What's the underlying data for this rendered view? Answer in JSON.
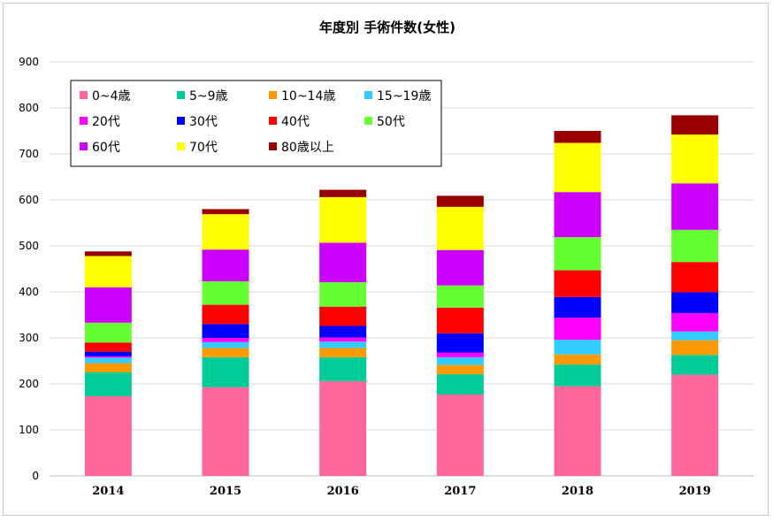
{
  "chart_data": {
    "type": "bar",
    "stacked": true,
    "title": "年度別 手術件数(女性)",
    "categories": [
      "2014",
      "2015",
      "2016",
      "2017",
      "2018",
      "2019"
    ],
    "ylim": [
      0,
      900
    ],
    "yticks": [
      0,
      100,
      200,
      300,
      400,
      500,
      600,
      700,
      800,
      900
    ],
    "grid": true,
    "legend_position": "top-left",
    "series": [
      {
        "name": "0~4歳",
        "color": "#FF6699",
        "values": [
          173,
          193,
          206,
          177,
          195,
          220
        ]
      },
      {
        "name": "5~9歳",
        "color": "#00CC99",
        "values": [
          52,
          65,
          52,
          44,
          47,
          43
        ]
      },
      {
        "name": "10~14歳",
        "color": "#FF9900",
        "values": [
          20,
          20,
          20,
          20,
          22,
          32
        ]
      },
      {
        "name": "15~19歳",
        "color": "#33CCFF",
        "values": [
          12,
          13,
          14,
          17,
          32,
          19
        ]
      },
      {
        "name": "20代",
        "color": "#FF00FF",
        "values": [
          3,
          9,
          9,
          10,
          48,
          40
        ]
      },
      {
        "name": "30代",
        "color": "#0000FF",
        "values": [
          10,
          30,
          25,
          42,
          45,
          45
        ]
      },
      {
        "name": "40代",
        "color": "#FF0000",
        "values": [
          20,
          42,
          42,
          56,
          58,
          66
        ]
      },
      {
        "name": "50代",
        "color": "#66FF33",
        "values": [
          43,
          51,
          53,
          48,
          72,
          70
        ]
      },
      {
        "name": "60代",
        "color": "#CC00FF",
        "values": [
          77,
          69,
          86,
          77,
          98,
          101
        ]
      },
      {
        "name": "70代",
        "color": "#FFFF00",
        "values": [
          68,
          77,
          99,
          94,
          107,
          106
        ]
      },
      {
        "name": "80歳以上",
        "color": "#990000",
        "values": [
          10,
          11,
          16,
          24,
          26,
          42
        ]
      }
    ]
  }
}
